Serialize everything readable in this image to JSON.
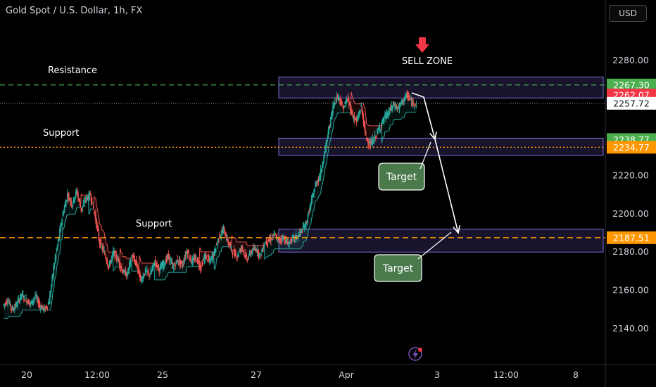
{
  "header": {
    "title": "Gold Spot / U.S. Dollar, 1h, FX",
    "currency": "USD"
  },
  "annotations": {
    "resistance": "Resistance",
    "support_upper": "Support",
    "support_lower": "Support",
    "sell_zone": "SELL ZONE",
    "target_1": "Target",
    "target_2": "Target"
  },
  "colors": {
    "background": "#000000",
    "up": "#26a69a",
    "down": "#ef5350",
    "zone_fill": "#2a2450",
    "zone_border": "#7e6fd6",
    "resistance_line": "#4caf50",
    "support_line": "#ff9800",
    "target_box": "#4a7a4c"
  },
  "chart_data": {
    "type": "candlestick",
    "x_ticks": [
      "20",
      "12:00",
      "25",
      "27",
      "Apr",
      "3",
      "12:00",
      "8"
    ],
    "y_ticks": [
      2280.0,
      2260.0,
      2240.0,
      2220.0,
      2200.0,
      2180.0,
      2160.0,
      2140.0
    ],
    "ylim": [
      2122,
      2299
    ],
    "price_labels": [
      {
        "value": 2267.3,
        "label": "2267.30",
        "color": "#4caf50"
      },
      {
        "value": 2262.07,
        "label": "2262.07",
        "color": "#f23645"
      },
      {
        "value": 2257.72,
        "label": "2257.72",
        "color": "#ffffff"
      },
      {
        "value": 2238.77,
        "label": "2238.77",
        "color": "#4caf50"
      },
      {
        "value": 2234.77,
        "label": "2234.77",
        "color": "#ff9800"
      },
      {
        "value": 2187.51,
        "label": "2187.51",
        "color": "#ff9800"
      }
    ],
    "levels": {
      "resistance": 2267.3,
      "current": 2257.72,
      "support_upper": 2234.77,
      "support_lower": 2187.51
    },
    "zones": [
      {
        "name": "sell-zone",
        "top": 2271.5,
        "bottom": 2260.5
      },
      {
        "name": "upper-support-zone",
        "top": 2239.5,
        "bottom": 2230.5
      },
      {
        "name": "lower-support-zone",
        "top": 2192.0,
        "bottom": 2180.0
      }
    ],
    "price_path": [
      2152,
      2155,
      2150,
      2153,
      2158,
      2155,
      2153,
      2157,
      2152,
      2150,
      2154,
      2172,
      2186,
      2200,
      2210,
      2205,
      2212,
      2202,
      2208,
      2210,
      2199,
      2185,
      2180,
      2172,
      2180,
      2176,
      2170,
      2168,
      2178,
      2174,
      2165,
      2170,
      2168,
      2175,
      2171,
      2174,
      2178,
      2172,
      2176,
      2173,
      2181,
      2175,
      2177,
      2172,
      2178,
      2175,
      2180,
      2188,
      2192,
      2185,
      2180,
      2178,
      2183,
      2176,
      2180,
      2182,
      2178,
      2185,
      2186,
      2189,
      2186,
      2188,
      2184,
      2187,
      2188,
      2191,
      2195,
      2205,
      2215,
      2220,
      2232,
      2245,
      2258,
      2262,
      2255,
      2260,
      2252,
      2248,
      2256,
      2240,
      2236,
      2240,
      2245,
      2250,
      2253,
      2257,
      2255,
      2259,
      2262,
      2258,
      2257.72
    ]
  }
}
